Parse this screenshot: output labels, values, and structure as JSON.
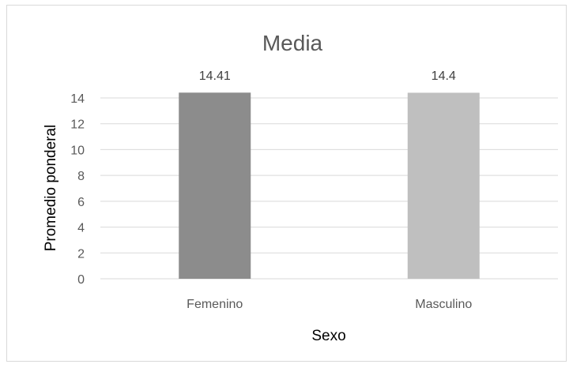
{
  "chart_data": {
    "type": "bar",
    "title": "Media",
    "xlabel": "Sexo",
    "ylabel": "Promedio ponderal",
    "categories": [
      "Femenino",
      "Masculino"
    ],
    "values": [
      14.41,
      14.4
    ],
    "data_labels": [
      "14.41",
      "14.4"
    ],
    "ylim": [
      0,
      14
    ],
    "yticks": [
      0,
      2,
      4,
      6,
      8,
      10,
      12,
      14
    ],
    "grid": true,
    "legend": "none",
    "bar_colors": [
      "#8c8c8c",
      "#bfbfbf"
    ],
    "gridline_color": "#d9d9d9"
  }
}
